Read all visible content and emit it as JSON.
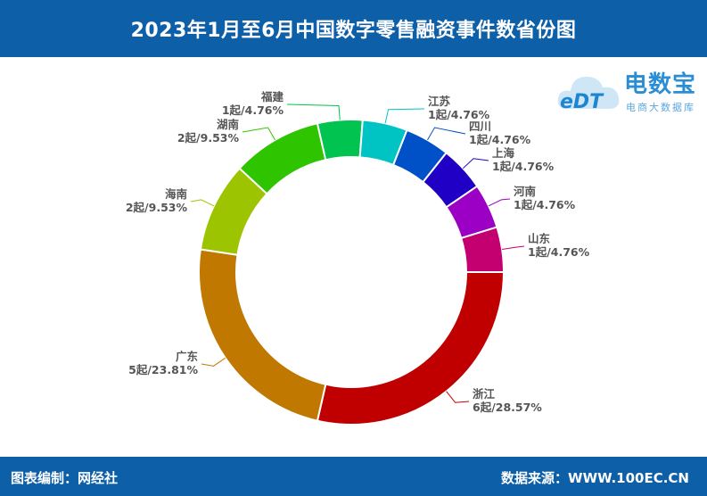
{
  "header": {
    "title": "2023年1月至6月中国数字零售融资事件数省份图"
  },
  "footer": {
    "credit": "图表编制：网经社",
    "source": "数据来源：WWW.100EC.CN"
  },
  "logo": {
    "mark": "eDT",
    "brand": "电数宝",
    "tagline": "电商大数据库"
  },
  "chart_data": {
    "type": "pie",
    "categories": [
      "浙江",
      "广东",
      "海南",
      "湖南",
      "福建",
      "江苏",
      "四川",
      "上海",
      "河南",
      "山东"
    ],
    "values": [
      6,
      5,
      2,
      2,
      1,
      1,
      1,
      1,
      1,
      1
    ],
    "labels": [
      "6起/28.57%",
      "5起/23.81%",
      "2起/9.53%",
      "2起/9.53%",
      "1起/4.76%",
      "1起/4.76%",
      "1起/4.76%",
      "1起/4.76%",
      "1起/4.76%",
      "1起/4.76%"
    ],
    "colors": [
      "#c00000",
      "#c07800",
      "#9dc400",
      "#2ec400",
      "#00c44f",
      "#00c4c4",
      "#0050c8",
      "#2000c4",
      "#9b00c4",
      "#c40070"
    ],
    "donut": true
  }
}
